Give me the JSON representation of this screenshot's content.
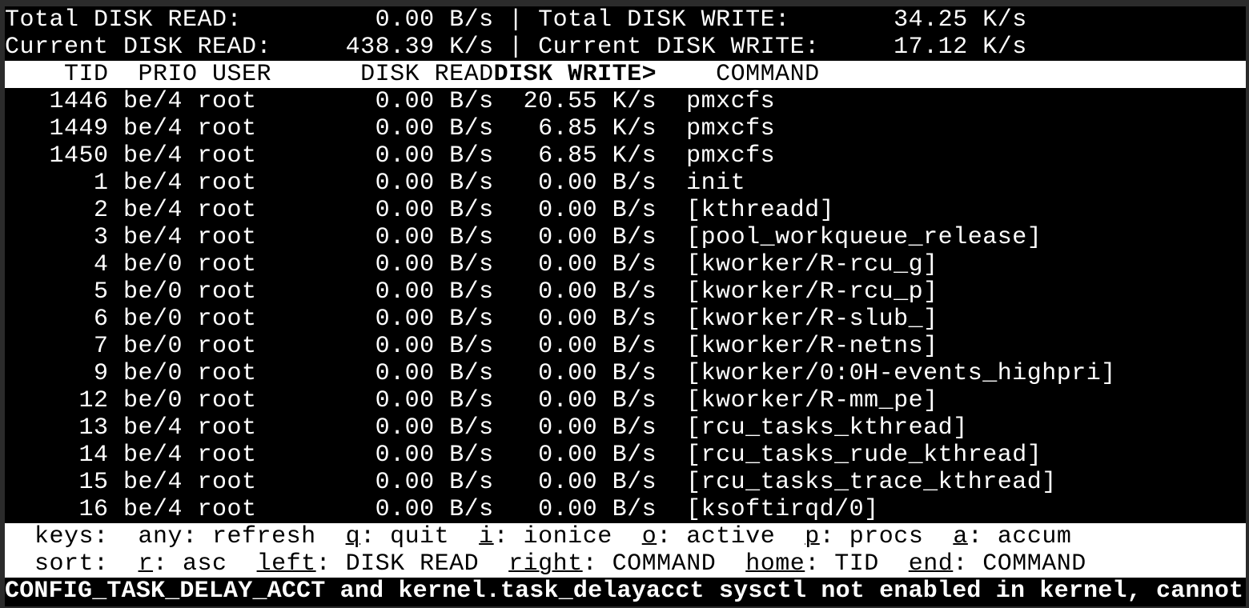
{
  "app_title": "iotop",
  "colors": {
    "background": "#000000",
    "foreground": "#ffffff",
    "inverse_bg": "#ffffff",
    "inverse_fg": "#000000",
    "window_border": "#2b2b2b"
  },
  "summary": {
    "total_disk_read_label": "Total DISK READ:",
    "total_disk_read_value": "0.00 B/s",
    "total_disk_write_label": "Total DISK WRITE:",
    "total_disk_write_value": "34.25 K/s",
    "current_disk_read_label": "Current DISK READ:",
    "current_disk_read_value": "438.39 K/s",
    "current_disk_write_label": "Current DISK WRITE:",
    "current_disk_write_value": "17.12 K/s",
    "separator": "|"
  },
  "table": {
    "columns": [
      "TID",
      "PRIO",
      "USER",
      "DISK READ",
      "DISK WRITE>",
      "COMMAND"
    ],
    "sort_column": "DISK WRITE>",
    "rows": [
      {
        "tid": "1446",
        "prio": "be/4",
        "user": "root",
        "read": "0.00 B/s",
        "write": "20.55 K/s",
        "command": "pmxcfs"
      },
      {
        "tid": "1449",
        "prio": "be/4",
        "user": "root",
        "read": "0.00 B/s",
        "write": "6.85 K/s",
        "command": "pmxcfs"
      },
      {
        "tid": "1450",
        "prio": "be/4",
        "user": "root",
        "read": "0.00 B/s",
        "write": "6.85 K/s",
        "command": "pmxcfs"
      },
      {
        "tid": "1",
        "prio": "be/4",
        "user": "root",
        "read": "0.00 B/s",
        "write": "0.00 B/s",
        "command": "init"
      },
      {
        "tid": "2",
        "prio": "be/4",
        "user": "root",
        "read": "0.00 B/s",
        "write": "0.00 B/s",
        "command": "[kthreadd]"
      },
      {
        "tid": "3",
        "prio": "be/4",
        "user": "root",
        "read": "0.00 B/s",
        "write": "0.00 B/s",
        "command": "[pool_workqueue_release]"
      },
      {
        "tid": "4",
        "prio": "be/0",
        "user": "root",
        "read": "0.00 B/s",
        "write": "0.00 B/s",
        "command": "[kworker/R-rcu_g]"
      },
      {
        "tid": "5",
        "prio": "be/0",
        "user": "root",
        "read": "0.00 B/s",
        "write": "0.00 B/s",
        "command": "[kworker/R-rcu_p]"
      },
      {
        "tid": "6",
        "prio": "be/0",
        "user": "root",
        "read": "0.00 B/s",
        "write": "0.00 B/s",
        "command": "[kworker/R-slub_]"
      },
      {
        "tid": "7",
        "prio": "be/0",
        "user": "root",
        "read": "0.00 B/s",
        "write": "0.00 B/s",
        "command": "[kworker/R-netns]"
      },
      {
        "tid": "9",
        "prio": "be/0",
        "user": "root",
        "read": "0.00 B/s",
        "write": "0.00 B/s",
        "command": "[kworker/0:0H-events_highpri]"
      },
      {
        "tid": "12",
        "prio": "be/0",
        "user": "root",
        "read": "0.00 B/s",
        "write": "0.00 B/s",
        "command": "[kworker/R-mm_pe]"
      },
      {
        "tid": "13",
        "prio": "be/4",
        "user": "root",
        "read": "0.00 B/s",
        "write": "0.00 B/s",
        "command": "[rcu_tasks_kthread]"
      },
      {
        "tid": "14",
        "prio": "be/4",
        "user": "root",
        "read": "0.00 B/s",
        "write": "0.00 B/s",
        "command": "[rcu_tasks_rude_kthread]"
      },
      {
        "tid": "15",
        "prio": "be/4",
        "user": "root",
        "read": "0.00 B/s",
        "write": "0.00 B/s",
        "command": "[rcu_tasks_trace_kthread]"
      },
      {
        "tid": "16",
        "prio": "be/4",
        "user": "root",
        "read": "0.00 B/s",
        "write": "0.00 B/s",
        "command": "[ksoftirqd/0]"
      }
    ]
  },
  "help": {
    "keys_row": {
      "prefix": "  keys:  ",
      "separator": "  ",
      "items": [
        {
          "key": "any",
          "desc": "refresh",
          "underlined": false
        },
        {
          "key": "q",
          "desc": "quit",
          "underlined": true
        },
        {
          "key": "i",
          "desc": "ionice",
          "underlined": true
        },
        {
          "key": "o",
          "desc": "active",
          "underlined": true
        },
        {
          "key": "p",
          "desc": "procs",
          "underlined": true
        },
        {
          "key": "a",
          "desc": "accum",
          "underlined": true
        }
      ]
    },
    "sort_row": {
      "prefix": "  sort:  ",
      "separator": "  ",
      "items": [
        {
          "key": "r",
          "desc": "asc",
          "underlined": true
        },
        {
          "key": "left",
          "desc": "DISK READ",
          "underlined": true
        },
        {
          "key": "right",
          "desc": "COMMAND",
          "underlined": true
        },
        {
          "key": "home",
          "desc": "TID",
          "underlined": true
        },
        {
          "key": "end",
          "desc": "COMMAND",
          "underlined": true
        }
      ]
    }
  },
  "status_message": "CONFIG_TASK_DELAY_ACCT and kernel.task_delayacct sysctl not enabled in kernel, cannot"
}
